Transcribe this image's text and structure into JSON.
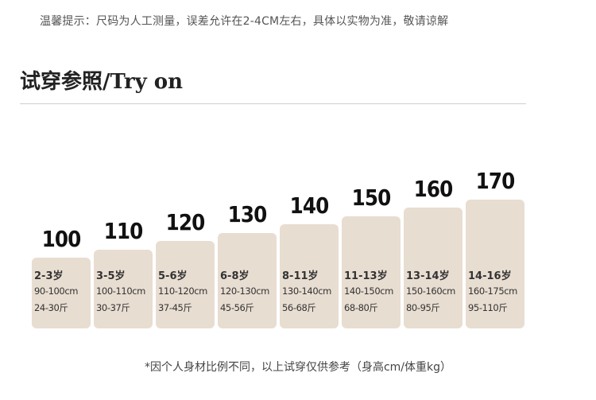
{
  "notice": "温馨提示：尺码为人工测量，误差允许在2-4CM左右，具体以实物为准，敬请谅解",
  "section_title": "试穿参照/Try on",
  "footnote": "*因个人身材比例不同，以上试穿仅供参考（身高cm/体重kg）",
  "colors": {
    "bar": "#e8ddd1",
    "text": "#333333",
    "divider": "#cfcfcf"
  },
  "chart_data": {
    "type": "bar",
    "categories": [
      "100",
      "110",
      "120",
      "130",
      "140",
      "150",
      "160",
      "170"
    ],
    "values": [
      100,
      110,
      120,
      130,
      140,
      150,
      160,
      170
    ],
    "title": "",
    "xlabel": "",
    "ylabel": "",
    "age_ranges": [
      "2-3岁",
      "3-5岁",
      "5-6岁",
      "6-8岁",
      "8-11岁",
      "11-13岁",
      "13-14岁",
      "14-16岁"
    ],
    "height_ranges": [
      "90-100cm",
      "100-110cm",
      "110-120cm",
      "120-130cm",
      "130-140cm",
      "140-150cm",
      "150-160cm",
      "160-175cm"
    ],
    "weight_ranges": [
      "24-30斤",
      "30-37斤",
      "37-45斤",
      "45-56斤",
      "56-68斤",
      "68-80斤",
      "80-95斤",
      "95-110斤"
    ],
    "grid": false
  }
}
